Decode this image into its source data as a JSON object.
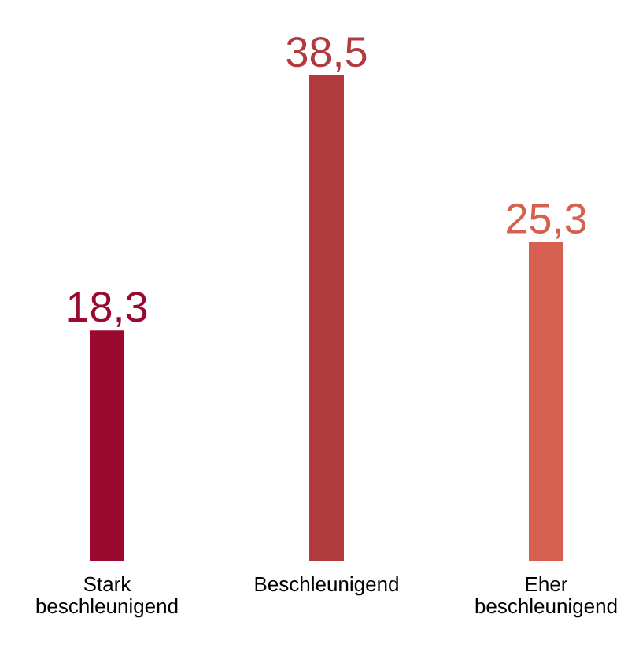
{
  "chart_data": {
    "type": "bar",
    "categories": [
      "Stark beschleunigend",
      "Beschleunigend",
      "Eher beschleunigend"
    ],
    "values": [
      18.3,
      38.5,
      25.3
    ],
    "colors": [
      "#9b0a2e",
      "#b03a3e",
      "#d6604f"
    ],
    "value_labels": [
      "18,3",
      "38,5",
      "25,3"
    ]
  }
}
